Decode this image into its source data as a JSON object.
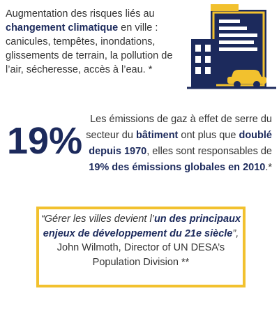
{
  "intro": {
    "runs": [
      "Augmentation des risques liés  au ",
      "changement climatique",
      " en ville : canicules, tempêtes, inondations, glissements de terrain, la pollution de l’air,  sécheresse, accès à l’eau. *"
    ]
  },
  "stat": {
    "figure": "19%",
    "runs": [
      "Les émissions de gaz à effet de  serre du secteur du ",
      "bâtiment",
      "  ont plus que ",
      "doublé depuis  1970",
      ", elles sont responsables  de ",
      "19% des émissions globales  en 2010",
      ".*"
    ]
  },
  "quote": {
    "runs": [
      "“Gérer les villes devient l’",
      "un des  principaux enjeux de  développement du 21e  siècle",
      "”,",
      "John Wilmoth,  Director of UN DESA’s Population Division **"
    ]
  }
}
